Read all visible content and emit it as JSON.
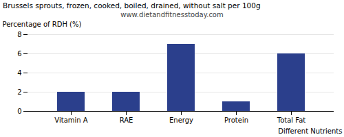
{
  "chart_data": {
    "type": "bar",
    "title": "Brussels sprouts, frozen, cooked, boiled, drained, without salt per 100g",
    "subtitle": "www.dietandfitnesstoday.com",
    "categories": [
      "Vitamin A",
      "RAE",
      "Energy",
      "Protein",
      "Total Fat"
    ],
    "values": [
      2.0,
      2.0,
      7.0,
      1.0,
      6.0
    ],
    "color": "#2b3f8c",
    "xlabel": "Different Nutrients",
    "ylabel": "Percentage of RDH (%)",
    "ylim": [
      0,
      8
    ],
    "yticks": [
      0,
      2,
      4,
      6,
      8
    ],
    "grid": true
  }
}
